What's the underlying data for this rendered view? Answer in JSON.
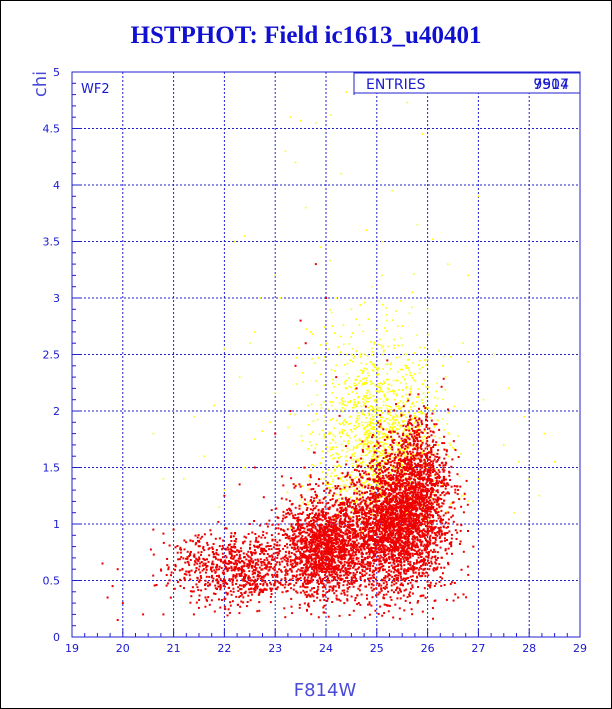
{
  "title": "HSTPHOT: Field ic1613_u40401",
  "panel_label": "WF2",
  "stats": {
    "label": "ENTRIES",
    "value": "7907",
    "value_overprint": "9514"
  },
  "colors": {
    "text": "#1010d0",
    "axis": "#2020d0",
    "faint_series": "#ffff00",
    "main_series": "#ee0000"
  },
  "chart_data": {
    "type": "scatter",
    "title": "HSTPHOT: Field ic1613_u40401",
    "xlabel": "F814W",
    "ylabel": "chi",
    "xlim": [
      19,
      29
    ],
    "ylim": [
      0,
      5
    ],
    "xticks": [
      "19",
      "20",
      "21",
      "22",
      "23",
      "24",
      "25",
      "26",
      "27",
      "28",
      "29"
    ],
    "yticks": [
      "0",
      "0.5",
      "1",
      "1.5",
      "2",
      "2.5",
      "3",
      "3.5",
      "4",
      "4.5",
      "5"
    ],
    "grid": true,
    "series": [
      {
        "color": "#ffff00",
        "points": [
          [
            23.3,
            4.6
          ],
          [
            23.5,
            4.57
          ],
          [
            23.8,
            4.55
          ],
          [
            24.1,
            4.62
          ],
          [
            23.2,
            4.3
          ],
          [
            23.4,
            4.2
          ],
          [
            25.6,
            4.73
          ],
          [
            25.9,
            4.45
          ],
          [
            24.6,
            4.86
          ],
          [
            24.4,
            4.82
          ],
          [
            23.6,
            3.8
          ],
          [
            25.3,
            3.95
          ],
          [
            25.8,
            3.65
          ],
          [
            24.8,
            3.6
          ],
          [
            22.4,
            3.55
          ],
          [
            22.2,
            3.5
          ],
          [
            26.1,
            3.52
          ],
          [
            27.0,
            3.9
          ],
          [
            26.8,
            3.2
          ],
          [
            23.0,
            3.2
          ],
          [
            22.0,
            2.55
          ],
          [
            22.3,
            2.3
          ],
          [
            21.8,
            2.05
          ],
          [
            21.4,
            1.95
          ],
          [
            22.6,
            2.7
          ],
          [
            23.1,
            3.0
          ],
          [
            27.3,
            2.5
          ],
          [
            27.6,
            2.2
          ],
          [
            27.9,
            1.95
          ],
          [
            28.3,
            1.8
          ],
          [
            20.6,
            1.8
          ],
          [
            20.8,
            1.4
          ],
          [
            21.2,
            1.4
          ],
          [
            21.6,
            1.6
          ],
          [
            27.5,
            1.7
          ],
          [
            27.8,
            1.55
          ],
          [
            28.0,
            1.4
          ],
          [
            28.2,
            1.25
          ],
          [
            27.7,
            1.1
          ],
          [
            28.5,
            1.55
          ],
          [
            24.2,
            3.0
          ],
          [
            24.5,
            2.9
          ],
          [
            24.9,
            3.1
          ],
          [
            25.2,
            2.8
          ],
          [
            25.5,
            2.75
          ],
          [
            25.7,
            3.05
          ],
          [
            26.0,
            2.9
          ],
          [
            23.7,
            2.7
          ],
          [
            24.0,
            2.6
          ],
          [
            26.3,
            2.4
          ],
          [
            27.1,
            2.1
          ],
          [
            26.7,
            2.6
          ],
          [
            26.9,
            1.7
          ],
          [
            27.0,
            1.4
          ],
          [
            26.9,
            1.2
          ],
          [
            22.9,
            1.9
          ],
          [
            22.6,
            1.75
          ],
          [
            22.4,
            1.5
          ],
          [
            22.0,
            1.3
          ],
          [
            21.9,
            1.15
          ],
          [
            24.3,
            4.1
          ],
          [
            23.9,
            3.45
          ],
          [
            25.1,
            3.5
          ],
          [
            26.4,
            3.3
          ],
          [
            22.7,
            3.0
          ],
          [
            22.5,
            2.6
          ]
        ],
        "cluster": {
          "x_center": 25.0,
          "x_spread": 1.0,
          "y_center": 1.75,
          "y_spread": 0.45,
          "count": 1500
        }
      },
      {
        "color": "#ee0000",
        "points": [
          [
            19.6,
            0.65
          ],
          [
            19.8,
            0.45
          ],
          [
            19.9,
            0.6
          ],
          [
            19.7,
            0.35
          ],
          [
            20.0,
            0.3
          ],
          [
            19.9,
            0.15
          ],
          [
            22.0,
            1.25
          ],
          [
            22.3,
            1.35
          ],
          [
            22.6,
            1.5
          ],
          [
            23.0,
            1.8
          ],
          [
            23.3,
            2.0
          ],
          [
            23.4,
            2.4
          ],
          [
            23.5,
            2.8
          ],
          [
            23.8,
            3.3
          ],
          [
            24.0,
            3.0
          ],
          [
            24.2,
            2.3
          ],
          [
            24.6,
            2.2
          ],
          [
            21.5,
            0.85
          ],
          [
            21.0,
            0.95
          ],
          [
            20.6,
            0.95
          ],
          [
            26.9,
            0.8
          ],
          [
            26.8,
            0.55
          ],
          [
            26.6,
            0.35
          ],
          [
            27.0,
            0.95
          ],
          [
            23.6,
            2.6
          ],
          [
            22.5,
            1.0
          ],
          [
            22.2,
            0.85
          ],
          [
            20.4,
            0.2
          ],
          [
            20.8,
            0.2
          ],
          [
            21.4,
            0.2
          ]
        ],
        "clusters": [
          {
            "x_center": 25.4,
            "x_spread": 0.8,
            "y_center": 1.0,
            "y_spread": 0.3,
            "count": 2700
          },
          {
            "x_center": 24.0,
            "x_spread": 0.7,
            "y_center": 0.8,
            "y_spread": 0.22,
            "count": 1700
          },
          {
            "x_center": 22.3,
            "x_spread": 1.1,
            "y_center": 0.6,
            "y_spread": 0.16,
            "count": 850
          },
          {
            "x_center": 25.8,
            "x_spread": 0.5,
            "y_center": 1.45,
            "y_spread": 0.28,
            "count": 700
          }
        ]
      }
    ]
  }
}
